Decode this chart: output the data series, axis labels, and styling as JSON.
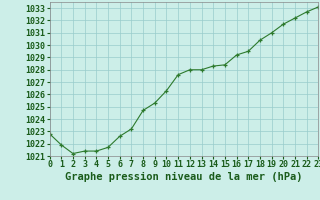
{
  "x": [
    0,
    1,
    2,
    3,
    4,
    5,
    6,
    7,
    8,
    9,
    10,
    11,
    12,
    13,
    14,
    15,
    16,
    17,
    18,
    19,
    20,
    21,
    22,
    23
  ],
  "y": [
    1022.8,
    1021.9,
    1021.2,
    1021.4,
    1021.4,
    1021.7,
    1022.6,
    1023.2,
    1024.7,
    1025.3,
    1026.3,
    1027.6,
    1028.0,
    1028.0,
    1028.3,
    1028.4,
    1029.2,
    1029.5,
    1030.4,
    1031.0,
    1031.7,
    1032.2,
    1032.7,
    1033.1
  ],
  "line_color": "#2d7a2d",
  "marker": "+",
  "bg_color": "#cceee8",
  "grid_color": "#99cccc",
  "axis_label_color": "#1a5c1a",
  "tick_color": "#1a5c1a",
  "title": "Graphe pression niveau de la mer (hPa)",
  "ylim_min": 1021.0,
  "ylim_max": 1033.5,
  "xlim_min": 0,
  "xlim_max": 23,
  "ytick_start": 1021,
  "ytick_end": 1033,
  "title_fontsize": 7.5,
  "tick_fontsize": 6.0
}
